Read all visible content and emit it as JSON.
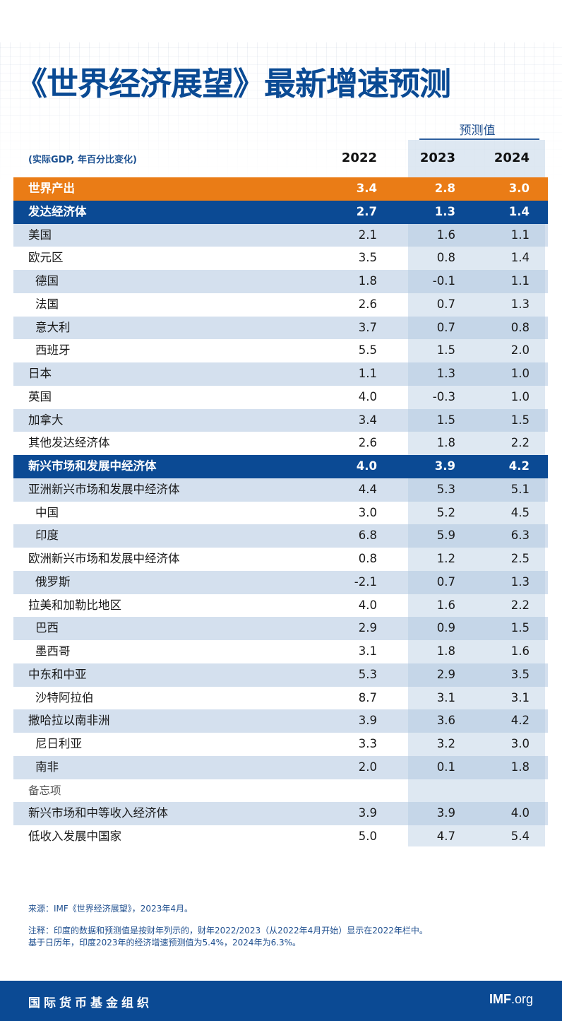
{
  "title": "《世界经济展望》最新增速预测",
  "units_note": "(实际GDP, 年百分比变化)",
  "forecast_label": "预测值",
  "columns": [
    "2022",
    "2023",
    "2024"
  ],
  "chart_data": {
    "type": "table",
    "title": "《世界经济展望》最新增速预测",
    "subtitle": "(实际GDP, 年百分比变化)",
    "columns": [
      "2022",
      "2023",
      "2024"
    ],
    "forecast_columns": [
      "2023",
      "2024"
    ],
    "rows": [
      {
        "label": "世界产出",
        "values": [
          "3.4",
          "2.8",
          "3.0"
        ],
        "style": "world"
      },
      {
        "label": "发达经济体",
        "values": [
          "2.7",
          "1.3",
          "1.4"
        ],
        "style": "group"
      },
      {
        "label": "美国",
        "values": [
          "2.1",
          "1.6",
          "1.1"
        ],
        "style": "stripe"
      },
      {
        "label": "欧元区",
        "values": [
          "3.5",
          "0.8",
          "1.4"
        ],
        "style": "plain"
      },
      {
        "label": "德国",
        "values": [
          "1.8",
          "-0.1",
          "1.1"
        ],
        "style": "stripe",
        "indent": true
      },
      {
        "label": "法国",
        "values": [
          "2.6",
          "0.7",
          "1.3"
        ],
        "style": "plain",
        "indent": true
      },
      {
        "label": "意大利",
        "values": [
          "3.7",
          "0.7",
          "0.8"
        ],
        "style": "stripe",
        "indent": true
      },
      {
        "label": "西班牙",
        "values": [
          "5.5",
          "1.5",
          "2.0"
        ],
        "style": "plain",
        "indent": true
      },
      {
        "label": "日本",
        "values": [
          "1.1",
          "1.3",
          "1.0"
        ],
        "style": "stripe"
      },
      {
        "label": "英国",
        "values": [
          "4.0",
          "-0.3",
          "1.0"
        ],
        "style": "plain"
      },
      {
        "label": "加拿大",
        "values": [
          "3.4",
          "1.5",
          "1.5"
        ],
        "style": "stripe"
      },
      {
        "label": "其他发达经济体",
        "values": [
          "2.6",
          "1.8",
          "2.2"
        ],
        "style": "plain"
      },
      {
        "label": "新兴市场和发展中经济体",
        "values": [
          "4.0",
          "3.9",
          "4.2"
        ],
        "style": "group"
      },
      {
        "label": "亚洲新兴市场和发展中经济体",
        "values": [
          "4.4",
          "5.3",
          "5.1"
        ],
        "style": "stripe"
      },
      {
        "label": "中国",
        "values": [
          "3.0",
          "5.2",
          "4.5"
        ],
        "style": "plain",
        "indent": true
      },
      {
        "label": "印度",
        "values": [
          "6.8",
          "5.9",
          "6.3"
        ],
        "style": "stripe",
        "indent": true
      },
      {
        "label": "欧洲新兴市场和发展中经济体",
        "values": [
          "0.8",
          "1.2",
          "2.5"
        ],
        "style": "plain"
      },
      {
        "label": "俄罗斯",
        "values": [
          "-2.1",
          "0.7",
          "1.3"
        ],
        "style": "stripe",
        "indent": true
      },
      {
        "label": "拉美和加勒比地区",
        "values": [
          "4.0",
          "1.6",
          "2.2"
        ],
        "style": "plain"
      },
      {
        "label": "巴西",
        "values": [
          "2.9",
          "0.9",
          "1.5"
        ],
        "style": "stripe",
        "indent": true
      },
      {
        "label": "墨西哥",
        "values": [
          "3.1",
          "1.8",
          "1.6"
        ],
        "style": "plain",
        "indent": true
      },
      {
        "label": "中东和中亚",
        "values": [
          "5.3",
          "2.9",
          "3.5"
        ],
        "style": "stripe"
      },
      {
        "label": "沙特阿拉伯",
        "values": [
          "8.7",
          "3.1",
          "3.1"
        ],
        "style": "plain",
        "indent": true
      },
      {
        "label": "撒哈拉以南非洲",
        "values": [
          "3.9",
          "3.6",
          "4.2"
        ],
        "style": "stripe"
      },
      {
        "label": "尼日利亚",
        "values": [
          "3.3",
          "3.2",
          "3.0"
        ],
        "style": "plain",
        "indent": true
      },
      {
        "label": "南非",
        "values": [
          "2.0",
          "0.1",
          "1.8"
        ],
        "style": "stripe",
        "indent": true
      },
      {
        "label": "备忘项",
        "values": [
          "",
          "",
          ""
        ],
        "style": "memo"
      },
      {
        "label": "新兴市场和中等收入经济体",
        "values": [
          "3.9",
          "3.9",
          "4.0"
        ],
        "style": "stripe"
      },
      {
        "label": "低收入发展中国家",
        "values": [
          "5.0",
          "4.7",
          "5.4"
        ],
        "style": "plain"
      }
    ]
  },
  "source": "来源：IMF《世界经济展望》，2023年4月。",
  "note_lines": [
    "注释：印度的数据和预测值是按财年列示的，财年2022/2023（从2022年4月开始）显示在2022年栏中。",
    "基于日历年，印度2023年的经济增速预测值为5.4%，2024年为6.3%。"
  ],
  "footer": {
    "org": "国际货币基金组织",
    "site_bold": "IMF",
    "site_rest": ".org"
  },
  "colors": {
    "title": "#0a4a94",
    "world_row": "#ea7c16",
    "group_row": "#0b4a94",
    "stripe": "#b0c7e0",
    "forecast_shade": "#b0c7e0",
    "footer": "#0b4a94"
  }
}
